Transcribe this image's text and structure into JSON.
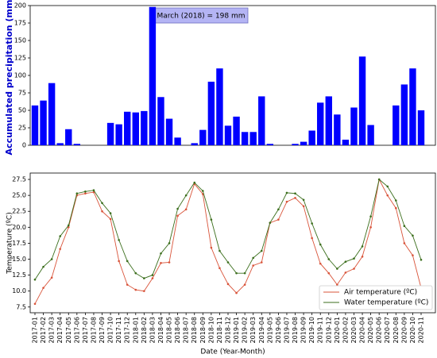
{
  "chart_data": [
    {
      "type": "bar",
      "ylabel": "Accumulated precipitation (mm)",
      "color": "#0000ff",
      "annotation": "March (2018) = 198 mm",
      "values": [
        57,
        64,
        89,
        3,
        23,
        2,
        0,
        0,
        0,
        32,
        30,
        48,
        47,
        49,
        198,
        69,
        38,
        11,
        0,
        3,
        22,
        91,
        110,
        28,
        41,
        19,
        19,
        70,
        2,
        0,
        0,
        2,
        5,
        21,
        61,
        70,
        44,
        8,
        54,
        127,
        29,
        0,
        0,
        57,
        87,
        110,
        50
      ],
      "ylim": [
        0,
        200
      ],
      "yticks": [
        0,
        25,
        50,
        75,
        100,
        125,
        150,
        175,
        200
      ]
    },
    {
      "type": "line",
      "ylabel": "Temperature (ºC)",
      "xlabel": "Date (Year-Month)",
      "legend": "lower right",
      "categories": [
        "2017-01",
        "2017-02",
        "2017-03",
        "2017-04",
        "2017-05",
        "2017-06",
        "2017-07",
        "2017-08",
        "2017-09",
        "2017-10",
        "2017-11",
        "2017-12",
        "2018-01",
        "2018-02",
        "2018-03",
        "2018-04",
        "2018-05",
        "2018-06",
        "2018-07",
        "2018-08",
        "2018-09",
        "2018-10",
        "2018-11",
        "2018-12",
        "2019-01",
        "2019-02",
        "2019-03",
        "2019-04",
        "2019-05",
        "2019-06",
        "2019-07",
        "2019-08",
        "2019-09",
        "2019-10",
        "2019-11",
        "2019-12",
        "2020-01",
        "2020-02",
        "2020-03",
        "2020-04",
        "2020-05",
        "2020-06",
        "2020-07",
        "2020-08",
        "2020-09",
        "2020-10",
        "2020-11"
      ],
      "series": [
        {
          "name": "Air temperature (ºC)",
          "color": "#d9543a",
          "values": [
            8.0,
            10.5,
            12.1,
            16.6,
            20.0,
            25.0,
            25.3,
            25.5,
            22.5,
            21.3,
            14.7,
            11.0,
            10.2,
            10.0,
            12.0,
            14.4,
            14.5,
            21.8,
            22.8,
            26.8,
            25.2,
            16.8,
            13.6,
            11.1,
            9.7,
            11.0,
            14.0,
            14.5,
            20.7,
            21.2,
            24.0,
            24.6,
            23.3,
            18.3,
            14.3,
            12.8,
            11.0,
            12.9,
            13.5,
            15.4,
            20.0,
            27.5,
            25.0,
            23.0,
            17.5,
            15.6,
            10.5
          ]
        },
        {
          "name": "Water temperature (ºC)",
          "color": "#3b6e1c",
          "values": [
            11.8,
            13.8,
            15.0,
            18.6,
            20.3,
            25.3,
            25.6,
            25.8,
            23.8,
            22.2,
            18.0,
            14.7,
            12.8,
            12.0,
            12.5,
            15.9,
            17.5,
            22.9,
            25.0,
            27.0,
            25.7,
            21.2,
            16.3,
            14.5,
            12.8,
            12.8,
            15.2,
            16.3,
            20.7,
            22.8,
            25.4,
            25.3,
            24.3,
            20.6,
            17.3,
            15.0,
            13.5,
            14.6,
            15.1,
            17.0,
            21.7,
            27.5,
            26.4,
            24.2,
            20.2,
            18.7,
            14.9
          ]
        }
      ],
      "ylim": [
        6.6,
        28.5
      ],
      "yticks": [
        7.5,
        {
          "value": 10,
          "label": "10.0"
        },
        12.5,
        {
          "value": 15,
          "label": "15.0"
        },
        17.5,
        {
          "value": 20,
          "label": "20.0"
        },
        22.5,
        {
          "value": 25,
          "label": "25.0"
        },
        27.5
      ]
    }
  ]
}
